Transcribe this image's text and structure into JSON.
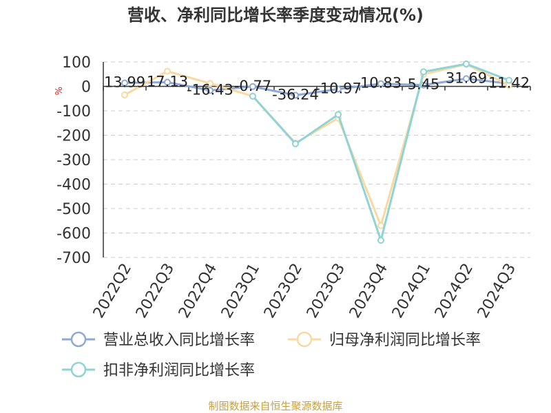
{
  "chart_data": {
    "type": "line",
    "title": "营收、净利同比增长率季度变动情况(%)",
    "ylabel": "%",
    "xlabel": "",
    "categories": [
      "2022Q2",
      "2022Q3",
      "2022Q4",
      "2023Q1",
      "2023Q2",
      "2023Q3",
      "2023Q4",
      "2024Q1",
      "2024Q2",
      "2024Q3"
    ],
    "ylim": [
      -700,
      100
    ],
    "yticks": [
      100,
      0,
      -100,
      -200,
      -300,
      -400,
      -500,
      -600,
      -700
    ],
    "grid": true,
    "legend_position": "bottom",
    "series": [
      {
        "name": "营业总收入同比增长率",
        "color": "#8fa9d6",
        "values": [
          13.99,
          17.13,
          -16.43,
          -0.77,
          -36.24,
          -10.97,
          10.83,
          5.45,
          31.69,
          11.42
        ],
        "labels": [
          "13.99",
          "17.13",
          "-16.43",
          "-0.77",
          "-36.24",
          "-10.97",
          "10.83",
          "5.45",
          "31.69",
          "11.42"
        ]
      },
      {
        "name": "归母净利润同比增长率",
        "color": "#f9d9a0",
        "values": [
          -35,
          62,
          12,
          -40,
          -232,
          -130,
          -570,
          50,
          90,
          5
        ]
      },
      {
        "name": "扣非净利润同比增长率",
        "color": "#8ed3d6",
        "values": [
          null,
          null,
          null,
          -40,
          -235,
          -115,
          -630,
          60,
          92,
          25
        ]
      }
    ],
    "source": "制图数据来自恒生聚源数据库"
  }
}
